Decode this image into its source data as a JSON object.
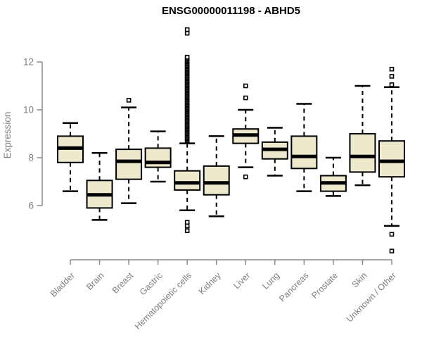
{
  "colors": {
    "box_fill": "#EEE8CD",
    "box_stroke": "#000000",
    "median_color": "#000000",
    "axis_color": "#8a8a8a",
    "tick_text_color": "#7f7f7f",
    "title_color": "#000000",
    "background": "#ffffff"
  },
  "chart_data": {
    "type": "boxplot",
    "title": "ENSG00000011198 - ABHD5",
    "xlabel": "",
    "ylabel": "Expression",
    "y_ticks": [
      6,
      8,
      10,
      12
    ],
    "ylim": [
      3.7,
      13.6
    ],
    "grid": false,
    "legend": false,
    "categories": [
      "Bladder",
      "Brain",
      "Breast",
      "Gastric",
      "Hematopoietic cells",
      "Kidney",
      "Liver",
      "Lung",
      "Pancreas",
      "Prostate",
      "Skin",
      "Unknown / Other"
    ],
    "series": [
      {
        "name": "Bladder",
        "whisker_low": 6.6,
        "q1": 7.8,
        "median": 8.4,
        "q3": 8.9,
        "whisker_high": 9.45,
        "outliers_low": [],
        "outliers_high": []
      },
      {
        "name": "Brain",
        "whisker_low": 5.4,
        "q1": 5.9,
        "median": 6.45,
        "q3": 7.05,
        "whisker_high": 8.2,
        "outliers_low": [],
        "outliers_high": []
      },
      {
        "name": "Breast",
        "whisker_low": 6.1,
        "q1": 7.1,
        "median": 7.85,
        "q3": 8.35,
        "whisker_high": 10.1,
        "outliers_low": [],
        "outliers_high": [
          10.4
        ]
      },
      {
        "name": "Gastric",
        "whisker_low": 7.0,
        "q1": 7.6,
        "median": 7.8,
        "q3": 8.4,
        "whisker_high": 9.1,
        "outliers_low": [],
        "outliers_high": []
      },
      {
        "name": "Hematopoietic cells",
        "whisker_low": 5.8,
        "q1": 6.65,
        "median": 6.95,
        "q3": 7.45,
        "whisker_high": 8.6,
        "outliers_low": [
          5.3,
          5.15,
          4.95
        ],
        "outliers_high": [
          8.7,
          8.75,
          8.8,
          8.85,
          8.9,
          8.95,
          9.0,
          9.05,
          9.1,
          9.15,
          9.2,
          9.25,
          9.3,
          9.35,
          9.4,
          9.45,
          9.5,
          9.55,
          9.6,
          9.65,
          9.7,
          9.75,
          9.8,
          9.85,
          9.9,
          9.95,
          10.0,
          10.05,
          10.1,
          10.15,
          10.2,
          10.25,
          10.3,
          10.35,
          10.4,
          10.45,
          10.5,
          10.55,
          10.6,
          10.65,
          10.7,
          10.75,
          10.8,
          10.85,
          10.9,
          10.95,
          11.0,
          11.05,
          11.1,
          11.15,
          11.2,
          11.25,
          11.3,
          11.35,
          11.4,
          11.45,
          11.5,
          11.55,
          11.6,
          11.65,
          11.7,
          11.75,
          11.8,
          11.85,
          11.9,
          11.95,
          12.0,
          12.05,
          12.1,
          12.15,
          12.2,
          13.2,
          13.35
        ]
      },
      {
        "name": "Kidney",
        "whisker_low": 5.55,
        "q1": 6.45,
        "median": 6.95,
        "q3": 7.65,
        "whisker_high": 8.9,
        "outliers_low": [],
        "outliers_high": []
      },
      {
        "name": "Liver",
        "whisker_low": 7.6,
        "q1": 8.6,
        "median": 8.95,
        "q3": 9.2,
        "whisker_high": 10.0,
        "outliers_low": [
          7.2
        ],
        "outliers_high": [
          10.5,
          11.0
        ]
      },
      {
        "name": "Lung",
        "whisker_low": 7.25,
        "q1": 7.95,
        "median": 8.35,
        "q3": 8.65,
        "whisker_high": 9.25,
        "outliers_low": [],
        "outliers_high": []
      },
      {
        "name": "Pancreas",
        "whisker_low": 6.6,
        "q1": 7.55,
        "median": 8.05,
        "q3": 8.9,
        "whisker_high": 10.25,
        "outliers_low": [],
        "outliers_high": []
      },
      {
        "name": "Prostate",
        "whisker_low": 6.4,
        "q1": 6.6,
        "median": 6.95,
        "q3": 7.25,
        "whisker_high": 8.0,
        "outliers_low": [],
        "outliers_high": []
      },
      {
        "name": "Skin",
        "whisker_low": 6.85,
        "q1": 7.4,
        "median": 8.05,
        "q3": 9.0,
        "whisker_high": 11.0,
        "outliers_low": [],
        "outliers_high": []
      },
      {
        "name": "Unknown / Other",
        "whisker_low": 5.15,
        "q1": 7.2,
        "median": 7.85,
        "q3": 8.7,
        "whisker_high": 10.95,
        "outliers_low": [
          4.8,
          4.1
        ],
        "outliers_high": [
          11.05,
          11.4,
          11.7
        ]
      }
    ]
  }
}
